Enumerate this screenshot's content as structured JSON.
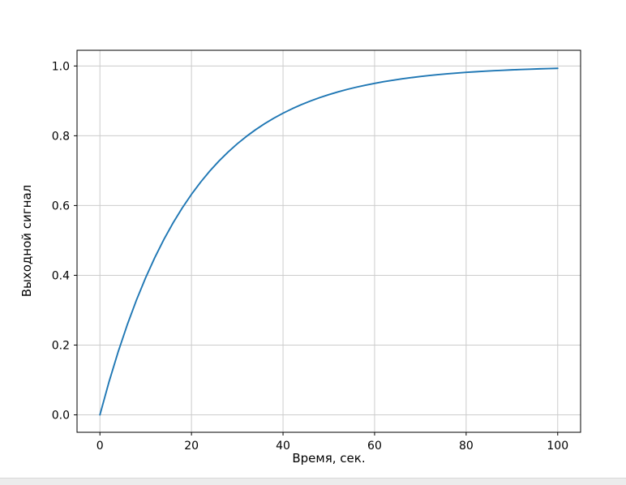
{
  "chart_data": {
    "type": "line",
    "title": "",
    "xlabel": "Время, сек.",
    "ylabel": "Выходной сигнал",
    "xlim": [
      -5,
      105
    ],
    "ylim": [
      -0.05,
      1.045
    ],
    "xticks": [
      0,
      20,
      40,
      60,
      80,
      100
    ],
    "xtick_labels": [
      "0",
      "20",
      "40",
      "60",
      "80",
      "100"
    ],
    "yticks": [
      0,
      0.2,
      0.4,
      0.6,
      0.8,
      1
    ],
    "ytick_labels": [
      "0.0",
      "0.2",
      "0.4",
      "0.6",
      "0.8",
      "1.0"
    ],
    "grid": true,
    "legend_visible": false,
    "x": [
      0,
      2,
      4,
      6,
      8,
      10,
      12,
      14,
      16,
      18,
      20,
      22,
      24,
      26,
      28,
      30,
      32,
      34,
      36,
      38,
      40,
      42,
      44,
      46,
      48,
      50,
      52,
      54,
      56,
      58,
      60,
      62,
      64,
      66,
      68,
      70,
      72,
      74,
      76,
      78,
      80,
      82,
      84,
      86,
      88,
      90,
      92,
      94,
      96,
      98,
      100
    ],
    "y": [
      0.0,
      0.0952,
      0.1813,
      0.2592,
      0.3297,
      0.3935,
      0.4512,
      0.5034,
      0.5507,
      0.5934,
      0.6321,
      0.6671,
      0.6988,
      0.7275,
      0.7534,
      0.7769,
      0.7981,
      0.8173,
      0.8347,
      0.8504,
      0.8647,
      0.8775,
      0.8892,
      0.8997,
      0.9093,
      0.9179,
      0.9257,
      0.9328,
      0.9392,
      0.945,
      0.9502,
      0.955,
      0.9592,
      0.9631,
      0.9666,
      0.9698,
      0.9727,
      0.9753,
      0.9776,
      0.9798,
      0.9817,
      0.9834,
      0.985,
      0.9864,
      0.9877,
      0.9889,
      0.9899,
      0.9909,
      0.9918,
      0.9926,
      0.9933
    ],
    "colors": {
      "line": "#1f77b4",
      "grid": "#cccccc",
      "axis": "#000000",
      "background": "#ffffff"
    }
  }
}
